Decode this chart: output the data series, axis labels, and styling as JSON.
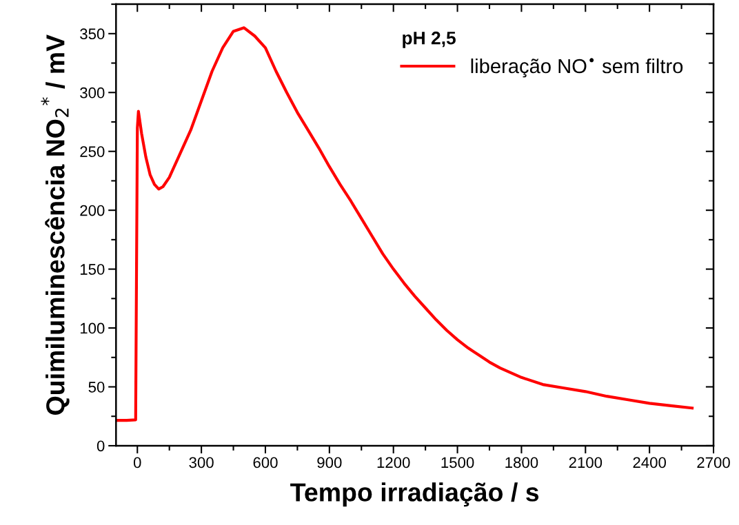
{
  "chart_data": {
    "type": "line",
    "xlabel": "Tempo irradiação / s",
    "ylabel": "Quimiluminescência NO$_{2}$$^{*}$ / mV",
    "legend_title": "pH 2,5",
    "legend": "top right",
    "grid": false,
    "marker": "none",
    "line_style": "solid",
    "xlim": [
      -100,
      2700
    ],
    "xticks": [
      0,
      300,
      600,
      900,
      1200,
      1500,
      1800,
      2100,
      2400,
      2700
    ],
    "ylim": [
      0,
      375
    ],
    "yticks": [
      0,
      50,
      100,
      150,
      200,
      250,
      300,
      350
    ],
    "series": [
      {
        "name": "liberação NO$^{•}$ sem filtro",
        "color": "#ff0000",
        "x": [
          -100,
          -50,
          -8,
          0,
          5,
          20,
          40,
          60,
          80,
          100,
          120,
          150,
          200,
          250,
          300,
          350,
          400,
          450,
          500,
          550,
          600,
          650,
          700,
          750,
          800,
          850,
          900,
          950,
          1000,
          1050,
          1100,
          1150,
          1200,
          1250,
          1300,
          1350,
          1400,
          1450,
          1500,
          1550,
          1600,
          1650,
          1700,
          1800,
          1900,
          2000,
          2100,
          2200,
          2300,
          2400,
          2500,
          2600
        ],
        "values": [
          21.5,
          21.5,
          22,
          270,
          284,
          265,
          245,
          230,
          222,
          218,
          220,
          228,
          248,
          268,
          293,
          318,
          338,
          352,
          355,
          348,
          338,
          318,
          300,
          283,
          268,
          253,
          237,
          222,
          208,
          193,
          178,
          163,
          150,
          138,
          127,
          117,
          107,
          98,
          90,
          83,
          77,
          71,
          66,
          58,
          52,
          49,
          46,
          42,
          39,
          36,
          34,
          32
        ]
      }
    ]
  }
}
